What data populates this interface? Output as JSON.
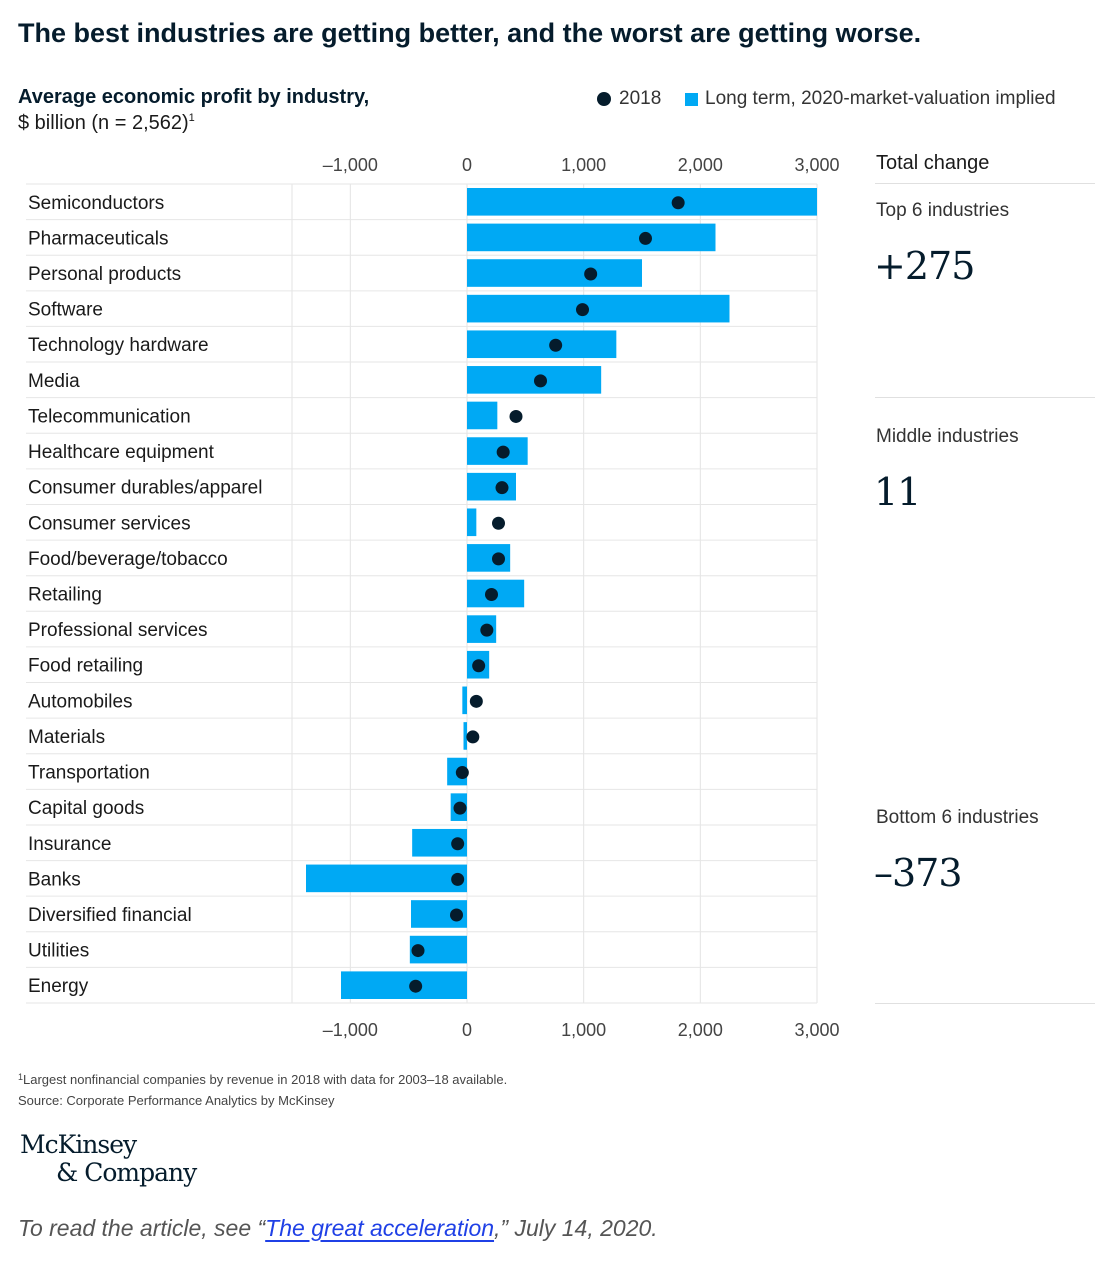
{
  "headline": "The best industries are getting better, and the worst are getting worse.",
  "legend": {
    "dot_label": "2018",
    "bar_label": "Long term, 2020-market-valuation implied"
  },
  "chart_data": {
    "type": "bar",
    "orientation": "horizontal",
    "title": "Average economic profit by industry,",
    "subtitle": "$ billion (n = 2,562)",
    "subtitle_footnote_marker": "1",
    "xlim": [
      -1500,
      3000
    ],
    "x_ticks": [
      -1000,
      0,
      1000,
      2000,
      3000
    ],
    "x_tick_labels": [
      "–1,000",
      "0",
      "1,000",
      "2,000",
      "3,000"
    ],
    "grid": true,
    "legend_position": "top-right",
    "categories": [
      "Semiconductors",
      "Pharmaceuticals",
      "Personal products",
      "Software",
      "Technology hardware",
      "Media",
      "Telecommunication",
      "Healthcare equipment",
      "Consumer durables/apparel",
      "Consumer services",
      "Food/beverage/tobacco",
      "Retailing",
      "Professional services",
      "Food retailing",
      "Automobiles",
      "Materials",
      "Transportation",
      "Capital goods",
      "Insurance",
      "Banks",
      "Diversified financial",
      "Utilities",
      "Energy"
    ],
    "series": [
      {
        "name": "Long term, 2020-market-valuation implied",
        "kind": "bar",
        "color": "#00a9f4",
        "values": [
          3000,
          2130,
          1500,
          2250,
          1280,
          1150,
          260,
          520,
          420,
          80,
          370,
          490,
          250,
          190,
          -40,
          -30,
          -170,
          -140,
          -470,
          -1380,
          -480,
          -490,
          -1080
        ]
      },
      {
        "name": "2018",
        "kind": "dot",
        "color": "#051c2c",
        "values": [
          1810,
          1530,
          1060,
          990,
          760,
          630,
          420,
          310,
          300,
          270,
          270,
          210,
          170,
          100,
          80,
          50,
          -40,
          -60,
          -80,
          -80,
          -90,
          -420,
          -440
        ]
      }
    ]
  },
  "side_panel": {
    "header": "Total change",
    "groups": [
      {
        "label": "Top 6 industries",
        "value": "+275"
      },
      {
        "label": "Middle industries",
        "value": "11"
      },
      {
        "label": "Bottom 6 industries",
        "value": "–373"
      }
    ]
  },
  "footnote": {
    "marker": "1",
    "text": "Largest nonfinancial companies by revenue in 2018 with data for 2003–18 available.",
    "source": "Source: Corporate Performance Analytics by McKinsey"
  },
  "logo": {
    "line1": "McKinsey",
    "line2": "& Company"
  },
  "read_more": {
    "prefix": "To read the article, see “",
    "link_text": "The great acceleration",
    "suffix": ",” July 14, 2020."
  },
  "colors": {
    "bar": "#00a9f4",
    "dot": "#051c2c",
    "link": "#1f40e6"
  }
}
